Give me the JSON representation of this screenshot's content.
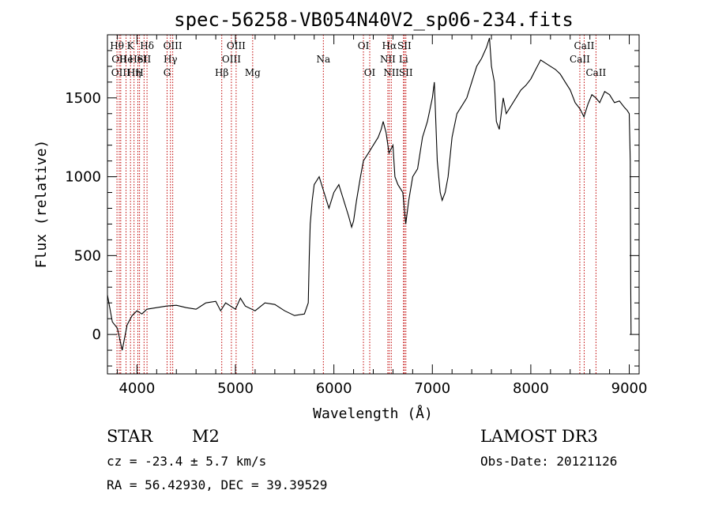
{
  "info": {
    "object_class": "STAR",
    "subclass": "M2",
    "survey": "LAMOST DR3",
    "redshift_text": "cz = -23.4 ± 5.7 km/s",
    "obs_date_text": "Obs-Date: 20121126",
    "coords_text": "RA =  56.42930, DEC =  39.39529"
  },
  "chart_data": {
    "type": "line",
    "title": "spec-56258-VB054N40V2_sp06-234.fits",
    "xlabel": "Wavelength (Å)",
    "ylabel": "Flux (relative)",
    "xlim": [
      3700,
      9100
    ],
    "ylim": [
      -250,
      1900
    ],
    "x_ticks": [
      4000,
      5000,
      6000,
      7000,
      8000,
      9000
    ],
    "y_ticks": [
      0,
      500,
      1000,
      1500
    ],
    "grid": false,
    "series": [
      {
        "color": "#000000",
        "points": [
          [
            3700,
            250
          ],
          [
            3750,
            80
          ],
          [
            3800,
            40
          ],
          [
            3850,
            -100
          ],
          [
            3900,
            60
          ],
          [
            3950,
            120
          ],
          [
            4000,
            150
          ],
          [
            4050,
            130
          ],
          [
            4100,
            160
          ],
          [
            4200,
            170
          ],
          [
            4300,
            180
          ],
          [
            4400,
            185
          ],
          [
            4500,
            170
          ],
          [
            4600,
            160
          ],
          [
            4700,
            200
          ],
          [
            4800,
            210
          ],
          [
            4850,
            150
          ],
          [
            4900,
            200
          ],
          [
            5000,
            160
          ],
          [
            5050,
            230
          ],
          [
            5100,
            180
          ],
          [
            5200,
            150
          ],
          [
            5300,
            200
          ],
          [
            5400,
            190
          ],
          [
            5500,
            150
          ],
          [
            5600,
            120
          ],
          [
            5700,
            130
          ],
          [
            5740,
            200
          ],
          [
            5750,
            500
          ],
          [
            5760,
            700
          ],
          [
            5780,
            850
          ],
          [
            5800,
            950
          ],
          [
            5850,
            1000
          ],
          [
            5900,
            900
          ],
          [
            5950,
            800
          ],
          [
            6000,
            900
          ],
          [
            6050,
            950
          ],
          [
            6100,
            850
          ],
          [
            6150,
            750
          ],
          [
            6180,
            680
          ],
          [
            6200,
            720
          ],
          [
            6230,
            850
          ],
          [
            6270,
            1000
          ],
          [
            6300,
            1100
          ],
          [
            6350,
            1150
          ],
          [
            6400,
            1200
          ],
          [
            6450,
            1250
          ],
          [
            6480,
            1300
          ],
          [
            6500,
            1350
          ],
          [
            6530,
            1280
          ],
          [
            6560,
            1150
          ],
          [
            6600,
            1200
          ],
          [
            6620,
            1000
          ],
          [
            6650,
            950
          ],
          [
            6700,
            900
          ],
          [
            6730,
            700
          ],
          [
            6760,
            850
          ],
          [
            6800,
            1000
          ],
          [
            6850,
            1050
          ],
          [
            6900,
            1250
          ],
          [
            6950,
            1350
          ],
          [
            7000,
            1500
          ],
          [
            7020,
            1600
          ],
          [
            7050,
            1100
          ],
          [
            7080,
            900
          ],
          [
            7100,
            850
          ],
          [
            7130,
            900
          ],
          [
            7160,
            1000
          ],
          [
            7200,
            1250
          ],
          [
            7250,
            1400
          ],
          [
            7300,
            1450
          ],
          [
            7350,
            1500
          ],
          [
            7400,
            1600
          ],
          [
            7450,
            1700
          ],
          [
            7500,
            1750
          ],
          [
            7550,
            1820
          ],
          [
            7580,
            1880
          ],
          [
            7600,
            1700
          ],
          [
            7630,
            1600
          ],
          [
            7650,
            1350
          ],
          [
            7680,
            1300
          ],
          [
            7700,
            1400
          ],
          [
            7720,
            1500
          ],
          [
            7750,
            1400
          ],
          [
            7800,
            1450
          ],
          [
            7850,
            1500
          ],
          [
            7900,
            1550
          ],
          [
            7950,
            1580
          ],
          [
            8000,
            1620
          ],
          [
            8050,
            1680
          ],
          [
            8100,
            1740
          ],
          [
            8150,
            1720
          ],
          [
            8200,
            1700
          ],
          [
            8250,
            1680
          ],
          [
            8300,
            1650
          ],
          [
            8350,
            1600
          ],
          [
            8400,
            1550
          ],
          [
            8450,
            1470
          ],
          [
            8500,
            1430
          ],
          [
            8540,
            1380
          ],
          [
            8580,
            1460
          ],
          [
            8620,
            1520
          ],
          [
            8660,
            1500
          ],
          [
            8700,
            1470
          ],
          [
            8750,
            1540
          ],
          [
            8800,
            1520
          ],
          [
            8850,
            1470
          ],
          [
            8900,
            1480
          ],
          [
            8950,
            1440
          ],
          [
            8980,
            1420
          ],
          [
            9000,
            1400
          ],
          [
            9010,
            1100
          ],
          [
            9015,
            300
          ],
          [
            9018,
            0
          ]
        ]
      }
    ],
    "lines": [
      {
        "wl": 3797,
        "label": "Hθ",
        "row": 0
      },
      {
        "wl": 3820,
        "label": "OII",
        "row": 1
      },
      {
        "wl": 3835,
        "label": "OIII",
        "row": 2
      },
      {
        "wl": 3889,
        "label": "He",
        "row": 1
      },
      {
        "wl": 3934,
        "label": "K",
        "row": 0
      },
      {
        "wl": 3970,
        "label": "Hη",
        "row": 2
      },
      {
        "wl": 4009,
        "label": "HeI",
        "row": 1
      },
      {
        "wl": 4026,
        "label": "H",
        "row": 2
      },
      {
        "wl": 4072,
        "label": "SII",
        "row": 1
      },
      {
        "wl": 4102,
        "label": "Hδ",
        "row": 0
      },
      {
        "wl": 4306,
        "label": "G",
        "row": 2
      },
      {
        "wl": 4340,
        "label": "Hγ",
        "row": 1
      },
      {
        "wl": 4363,
        "label": "OIII",
        "row": 0
      },
      {
        "wl": 4861,
        "label": "Hβ",
        "row": 2
      },
      {
        "wl": 4959,
        "label": "OIII",
        "row": 1
      },
      {
        "wl": 5007,
        "label": "OIII",
        "row": 0
      },
      {
        "wl": 5175,
        "label": "Mg",
        "row": 2
      },
      {
        "wl": 5893,
        "label": "Na",
        "row": 1
      },
      {
        "wl": 6300,
        "label": "OI",
        "row": 0
      },
      {
        "wl": 6364,
        "label": "OI",
        "row": 2
      },
      {
        "wl": 6548,
        "label": "NII",
        "row": 1
      },
      {
        "wl": 6563,
        "label": "Hα",
        "row": 0
      },
      {
        "wl": 6583,
        "label": "NII",
        "row": 2
      },
      {
        "wl": 6707,
        "label": "Li",
        "row": 1
      },
      {
        "wl": 6716,
        "label": "SII",
        "row": 0
      },
      {
        "wl": 6731,
        "label": "SII",
        "row": 2
      },
      {
        "wl": 8498,
        "label": "CaII",
        "row": 1
      },
      {
        "wl": 8542,
        "label": "CaII",
        "row": 0
      },
      {
        "wl": 8662,
        "label": "CaII",
        "row": 2
      }
    ]
  }
}
